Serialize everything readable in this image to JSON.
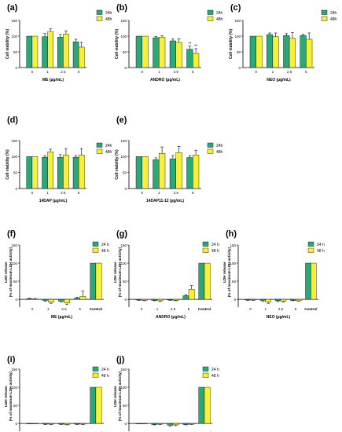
{
  "colors": {
    "h24": "#2aa878",
    "h48": "#f7ef3a",
    "axis": "#000000",
    "errbar": "#000000"
  },
  "chart_data": [
    {
      "panel": "(a)",
      "type": "bar",
      "xlabel": "ME (µg/mL)",
      "ylabel": "Cell viability (%)",
      "categories": [
        "0",
        "1",
        "2.5",
        "5"
      ],
      "ylim": [
        0,
        150
      ],
      "yticks": [
        "0",
        "50",
        "100",
        "150"
      ],
      "legend": [
        "24h",
        "48h"
      ],
      "series": [
        {
          "name": "24h",
          "values": [
            100,
            98,
            97,
            82
          ],
          "errors": [
            0,
            10,
            8,
            8
          ]
        },
        {
          "name": "48h",
          "values": [
            100,
            115,
            107,
            65
          ],
          "errors": [
            0,
            8,
            10,
            15
          ]
        }
      ],
      "annotations": []
    },
    {
      "panel": "(b)",
      "type": "bar",
      "xlabel": "ANDRO (µg/mL)",
      "ylabel": "Cell viability (%)",
      "categories": [
        "0",
        "1",
        "2.5",
        "5"
      ],
      "ylim": [
        0,
        150
      ],
      "yticks": [
        "0",
        "50",
        "100",
        "150"
      ],
      "legend": [
        "24h",
        "48h"
      ],
      "series": [
        {
          "name": "24h",
          "values": [
            100,
            95,
            85,
            58
          ],
          "errors": [
            0,
            4,
            6,
            10
          ]
        },
        {
          "name": "48h",
          "values": [
            100,
            97,
            80,
            45
          ],
          "errors": [
            0,
            4,
            12,
            15
          ]
        }
      ],
      "annotations": [
        {
          "category": "5",
          "series": "24h",
          "text": "**"
        },
        {
          "category": "5",
          "series": "48h",
          "text": "**"
        }
      ]
    },
    {
      "panel": "(c)",
      "type": "bar",
      "xlabel": "NEO (µg/mL)",
      "ylabel": "Cell viability (%)",
      "categories": [
        "0",
        "1",
        "2.5",
        "5"
      ],
      "ylim": [
        0,
        150
      ],
      "yticks": [
        "0",
        "50",
        "100",
        "150"
      ],
      "legend": [
        "24h",
        "48h"
      ],
      "series": [
        {
          "name": "24h",
          "values": [
            100,
            105,
            102,
            102
          ],
          "errors": [
            0,
            5,
            6,
            4
          ]
        },
        {
          "name": "48h",
          "values": [
            100,
            98,
            93,
            90
          ],
          "errors": [
            0,
            12,
            18,
            20
          ]
        }
      ],
      "annotations": []
    },
    {
      "panel": "(d)",
      "type": "bar",
      "xlabel": "14DAP (µg/mL)",
      "ylabel": "Cell viability (%)",
      "categories": [
        "0",
        "1",
        "2.5",
        "5"
      ],
      "ylim": [
        0,
        150
      ],
      "yticks": [
        "0",
        "50",
        "100",
        "150"
      ],
      "legend": [
        "24h",
        "48h"
      ],
      "series": [
        {
          "name": "24h",
          "values": [
            100,
            98,
            98,
            98
          ],
          "errors": [
            0,
            5,
            8,
            5
          ]
        },
        {
          "name": "48h",
          "values": [
            100,
            115,
            105,
            105
          ],
          "errors": [
            0,
            8,
            20,
            20
          ]
        }
      ],
      "annotations": []
    },
    {
      "panel": "(e)",
      "type": "bar",
      "xlabel": "14DAP11-12 (µg/mL)",
      "ylabel": "Cell viability (%)",
      "categories": [
        "0",
        "1",
        "2.5",
        "5"
      ],
      "ylim": [
        0,
        150
      ],
      "yticks": [
        "0",
        "50",
        "100",
        "150"
      ],
      "legend": [
        "24h",
        "48h"
      ],
      "series": [
        {
          "name": "24h",
          "values": [
            100,
            90,
            93,
            97
          ],
          "errors": [
            0,
            6,
            10,
            6
          ]
        },
        {
          "name": "48h",
          "values": [
            100,
            110,
            112,
            105
          ],
          "errors": [
            0,
            20,
            20,
            15
          ]
        }
      ],
      "annotations": []
    },
    {
      "panel": "(f)",
      "type": "bar",
      "xlabel": "ME (µg/mL)",
      "ylabel": "LDH release (% of maximum LDH activity)",
      "categories": [
        "0",
        "1",
        "2.5",
        "5",
        "Control"
      ],
      "ylim": [
        -15,
        150
      ],
      "yticks": [
        "0",
        "50",
        "100",
        "150"
      ],
      "legend": [
        "24 h",
        "48 h"
      ],
      "series": [
        {
          "name": "24 h",
          "values": [
            2,
            -3,
            -5,
            3,
            100
          ],
          "errors": [
            1,
            2,
            2,
            3,
            0
          ]
        },
        {
          "name": "48 h",
          "values": [
            1,
            -8,
            -10,
            8,
            100
          ],
          "errors": [
            1,
            3,
            4,
            15,
            0
          ]
        }
      ],
      "annotations": []
    },
    {
      "panel": "(g)",
      "type": "bar",
      "xlabel": "ANDRO (µg/mL)",
      "ylabel": "LDH release (% of maximum LDH activity)",
      "categories": [
        "0",
        "1",
        "2.5",
        "5",
        "Control"
      ],
      "ylim": [
        -15,
        150
      ],
      "yticks": [
        "0",
        "50",
        "100",
        "150"
      ],
      "legend": [
        "24 h",
        "48 h"
      ],
      "series": [
        {
          "name": "24 h",
          "values": [
            -2,
            -3,
            -2,
            10,
            100
          ],
          "errors": [
            1,
            1,
            1,
            3,
            0
          ]
        },
        {
          "name": "48 h",
          "values": [
            -3,
            -4,
            -3,
            28,
            100
          ],
          "errors": [
            1,
            2,
            1,
            10,
            0
          ]
        }
      ],
      "annotations": []
    },
    {
      "panel": "(h)",
      "type": "bar",
      "xlabel": "NEO (µg/mL)",
      "ylabel": "LDH release (% of maximum LDH activity)",
      "categories": [
        "0",
        "1",
        "2.5",
        "5",
        "Control"
      ],
      "ylim": [
        -15,
        150
      ],
      "yticks": [
        "0",
        "50",
        "100",
        "150"
      ],
      "legend": [
        "24 h",
        "48 h"
      ],
      "series": [
        {
          "name": "24 h",
          "values": [
            -2,
            -3,
            -4,
            -3,
            100
          ],
          "errors": [
            1,
            2,
            2,
            1,
            0
          ]
        },
        {
          "name": "48 h",
          "values": [
            -2,
            -8,
            -5,
            -4,
            100
          ],
          "errors": [
            1,
            3,
            2,
            1,
            0
          ]
        }
      ],
      "annotations": []
    },
    {
      "panel": "(i)",
      "type": "bar",
      "xlabel": "14DAP (µg/mL)",
      "ylabel": "LDH release (% of maximum LDH activity)",
      "categories": [
        "0",
        "1",
        "2.5",
        "5",
        "Control"
      ],
      "ylim": [
        -15,
        150
      ],
      "yticks": [
        "0",
        "50",
        "100",
        "150"
      ],
      "legend": [
        "24 h",
        "48 h"
      ],
      "series": [
        {
          "name": "24 h",
          "values": [
            0,
            -2,
            -2,
            -2,
            100
          ],
          "errors": [
            0,
            1,
            1,
            1,
            0
          ]
        },
        {
          "name": "48 h",
          "values": [
            0,
            -2,
            -3,
            -2,
            100
          ],
          "errors": [
            0,
            1,
            1,
            1,
            0
          ]
        }
      ],
      "annotations": []
    },
    {
      "panel": "(j)",
      "type": "bar",
      "xlabel": "14DAP11-12 (µg/mL)",
      "ylabel": "LDH release (% of maximum LDH activity)",
      "categories": [
        "0",
        "1",
        "2.5",
        "5",
        "Control"
      ],
      "ylim": [
        -15,
        150
      ],
      "yticks": [
        "0",
        "50",
        "100",
        "150"
      ],
      "legend": [
        "24 h",
        "48 h"
      ],
      "series": [
        {
          "name": "24 h",
          "values": [
            0,
            -3,
            -5,
            -3,
            100
          ],
          "errors": [
            0,
            1,
            2,
            1,
            0
          ]
        },
        {
          "name": "48 h",
          "values": [
            0,
            -2,
            -4,
            -2,
            100
          ],
          "errors": [
            0,
            1,
            2,
            1,
            0
          ]
        }
      ],
      "annotations": []
    }
  ]
}
